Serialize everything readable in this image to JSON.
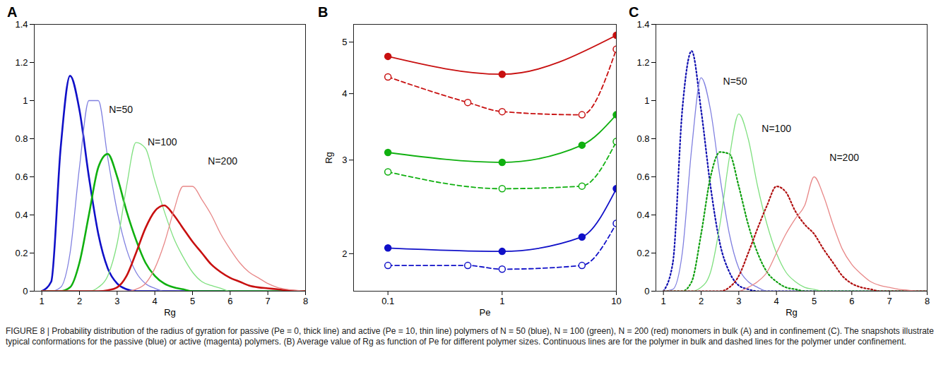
{
  "chart_data": [
    {
      "type": "line",
      "title": "A",
      "xlabel": "Rg",
      "x": [
        1,
        1.25,
        1.5,
        1.75,
        2,
        2.25,
        2.5,
        2.75,
        3,
        3.25,
        3.5,
        3.75,
        4,
        4.25,
        4.5,
        4.75,
        5,
        5.25,
        5.5,
        5.75,
        6,
        6.25,
        6.5,
        6.75,
        7,
        7.25,
        7.5,
        7.75,
        8
      ],
      "xlim": [
        0.8,
        8
      ],
      "xticks": [
        1,
        2,
        3,
        4,
        5,
        6,
        7,
        8
      ],
      "ylim": [
        0,
        1.4
      ],
      "yticks": [
        0,
        0.2,
        0.4,
        0.6,
        0.8,
        1,
        1.2,
        1.4
      ],
      "series": [
        {
          "color": "#1010c8",
          "line_style": "solid",
          "values": [
            0,
            0.05,
            0.75,
            1.13,
            0.95,
            0.6,
            0.3,
            0.12,
            0.04,
            0.01,
            0,
            0,
            0,
            0,
            0,
            0,
            0,
            0,
            0,
            0,
            0,
            0,
            0,
            0,
            0,
            0,
            0,
            0,
            0
          ]
        },
        {
          "color": "#8080e0",
          "line_style": "solid",
          "values": [
            0,
            0,
            0.02,
            0.2,
            0.65,
            1.0,
            1.0,
            0.7,
            0.42,
            0.22,
            0.1,
            0.04,
            0.015,
            0,
            0,
            0,
            0,
            0,
            0,
            0,
            0,
            0,
            0,
            0,
            0,
            0,
            0,
            0,
            0
          ]
        },
        {
          "color": "#10b010",
          "line_style": "solid",
          "values": [
            0,
            0,
            0,
            0.02,
            0.15,
            0.4,
            0.65,
            0.72,
            0.6,
            0.42,
            0.27,
            0.15,
            0.08,
            0.04,
            0.02,
            0.01,
            0,
            0,
            0,
            0,
            0,
            0,
            0,
            0,
            0,
            0,
            0,
            0,
            0
          ]
        },
        {
          "color": "#80e080",
          "line_style": "solid",
          "values": [
            0,
            0,
            0,
            0,
            0,
            0,
            0.02,
            0.08,
            0.25,
            0.55,
            0.78,
            0.75,
            0.58,
            0.42,
            0.28,
            0.18,
            0.1,
            0.05,
            0.03,
            0.015,
            0,
            0,
            0,
            0,
            0,
            0,
            0,
            0,
            0
          ]
        },
        {
          "color": "#c81010",
          "line_style": "solid",
          "values": [
            0,
            0,
            0,
            0,
            0,
            0,
            0,
            0.005,
            0.02,
            0.08,
            0.2,
            0.33,
            0.42,
            0.45,
            0.4,
            0.33,
            0.26,
            0.2,
            0.14,
            0.1,
            0.07,
            0.05,
            0.03,
            0.02,
            0.015,
            0.01,
            0.005,
            0,
            0
          ]
        },
        {
          "color": "#e88888",
          "line_style": "solid",
          "values": [
            0,
            0,
            0,
            0,
            0,
            0,
            0,
            0,
            0,
            0,
            0.01,
            0.04,
            0.12,
            0.25,
            0.42,
            0.55,
            0.55,
            0.48,
            0.4,
            0.3,
            0.22,
            0.15,
            0.1,
            0.07,
            0.04,
            0.02,
            0.01,
            0.005,
            0
          ]
        }
      ],
      "annotations": [
        {
          "text": "N=50",
          "x": 3.1,
          "y": 0.95
        },
        {
          "text": "N=100",
          "x": 4.2,
          "y": 0.78
        },
        {
          "text": "N=200",
          "x": 5.8,
          "y": 0.68
        }
      ]
    },
    {
      "type": "line",
      "title": "B",
      "xlabel": "Pe",
      "ylabel": "Rg",
      "log": true,
      "xlim": [
        0.05,
        10
      ],
      "xticks": [
        0.1,
        1,
        10
      ],
      "ylim": [
        1.7,
        5.4
      ],
      "yticks": [
        2,
        3,
        4,
        5
      ],
      "series": [
        {
          "color": "#c81010",
          "line_style": "solid",
          "marker": "filled",
          "x": [
            0.1,
            1,
            10
          ],
          "values": [
            4.7,
            4.35,
            5.15
          ]
        },
        {
          "color": "#c81010",
          "line_style": "dashed",
          "marker": "open",
          "x": [
            0.1,
            0.5,
            1,
            5,
            10
          ],
          "values": [
            4.3,
            3.85,
            3.7,
            3.65,
            4.85
          ]
        },
        {
          "color": "#10b010",
          "line_style": "solid",
          "marker": "filled",
          "x": [
            0.1,
            1,
            5,
            10
          ],
          "values": [
            3.1,
            2.97,
            3.2,
            3.65
          ]
        },
        {
          "color": "#10b010",
          "line_style": "dashed",
          "marker": "open",
          "x": [
            0.1,
            1,
            5,
            10
          ],
          "values": [
            2.85,
            2.65,
            2.68,
            3.25
          ]
        },
        {
          "color": "#1010c8",
          "line_style": "solid",
          "marker": "filled",
          "x": [
            0.1,
            1,
            5,
            10
          ],
          "values": [
            2.05,
            2.02,
            2.15,
            2.65
          ]
        },
        {
          "color": "#1010c8",
          "line_style": "dashed",
          "marker": "open",
          "x": [
            0.1,
            0.5,
            1,
            5,
            10
          ],
          "values": [
            1.9,
            1.9,
            1.87,
            1.9,
            2.28
          ]
        }
      ]
    },
    {
      "type": "line",
      "title": "C",
      "xlabel": "Rg",
      "x": [
        1,
        1.25,
        1.5,
        1.75,
        2,
        2.25,
        2.5,
        2.75,
        3,
        3.25,
        3.5,
        3.75,
        4,
        4.25,
        4.5,
        4.75,
        5,
        5.25,
        5.5,
        5.75,
        6,
        6.25,
        6.5,
        6.75,
        7,
        7.25,
        7.5,
        7.75,
        8
      ],
      "xlim": [
        0.8,
        8
      ],
      "xticks": [
        1,
        2,
        3,
        4,
        5,
        6,
        7,
        8
      ],
      "ylim": [
        0,
        1.4
      ],
      "yticks": [
        0,
        0.2,
        0.4,
        0.6,
        0.8,
        1,
        1.2,
        1.4
      ],
      "series": [
        {
          "color": "#1010b0",
          "line_style": "dotted",
          "values": [
            0,
            0.15,
            0.95,
            1.26,
            0.95,
            0.55,
            0.25,
            0.1,
            0.03,
            0.01,
            0,
            0,
            0,
            0,
            0,
            0,
            0,
            0,
            0,
            0,
            0,
            0,
            0,
            0,
            0,
            0,
            0,
            0,
            0
          ]
        },
        {
          "color": "#8080e0",
          "line_style": "solid",
          "values": [
            0,
            0.01,
            0.2,
            0.75,
            1.12,
            0.95,
            0.6,
            0.3,
            0.12,
            0.05,
            0.02,
            0,
            0,
            0,
            0,
            0,
            0,
            0,
            0,
            0,
            0,
            0,
            0,
            0,
            0,
            0,
            0,
            0,
            0
          ]
        },
        {
          "color": "#10a010",
          "line_style": "dotted",
          "values": [
            0,
            0,
            0,
            0.05,
            0.3,
            0.6,
            0.73,
            0.72,
            0.55,
            0.35,
            0.2,
            0.1,
            0.05,
            0.02,
            0.01,
            0,
            0,
            0,
            0,
            0,
            0,
            0,
            0,
            0,
            0,
            0,
            0,
            0,
            0
          ]
        },
        {
          "color": "#80e080",
          "line_style": "solid",
          "values": [
            0,
            0,
            0,
            0,
            0.02,
            0.1,
            0.35,
            0.7,
            0.93,
            0.8,
            0.55,
            0.35,
            0.2,
            0.1,
            0.05,
            0.02,
            0.01,
            0,
            0,
            0,
            0,
            0,
            0,
            0,
            0,
            0,
            0,
            0,
            0
          ]
        },
        {
          "color": "#b01010",
          "line_style": "dotted",
          "values": [
            0,
            0,
            0,
            0,
            0,
            0,
            0,
            0.02,
            0.08,
            0.2,
            0.33,
            0.45,
            0.55,
            0.52,
            0.42,
            0.35,
            0.3,
            0.22,
            0.15,
            0.08,
            0.04,
            0.02,
            0.01,
            0,
            0,
            0,
            0,
            0,
            0
          ]
        },
        {
          "color": "#e88888",
          "line_style": "solid",
          "values": [
            0,
            0,
            0,
            0,
            0,
            0,
            0,
            0,
            0,
            0.02,
            0.05,
            0.1,
            0.2,
            0.3,
            0.38,
            0.45,
            0.6,
            0.5,
            0.35,
            0.22,
            0.14,
            0.09,
            0.05,
            0.03,
            0.02,
            0.01,
            0.005,
            0,
            0
          ]
        }
      ],
      "annotations": [
        {
          "text": "N=50",
          "x": 2.9,
          "y": 1.1
        },
        {
          "text": "N=100",
          "x": 4.0,
          "y": 0.85
        },
        {
          "text": "N=200",
          "x": 5.8,
          "y": 0.7
        }
      ]
    }
  ],
  "caption": "FIGURE 8 | Probability distribution of the radius of gyration for passive (Pe = 0, thick line) and active (Pe = 10, thin line) polymers of N = 50 (blue), N = 100 (green), N = 200 (red) monomers in bulk (A) and in confinement (C). The snapshots illustrate typical conformations for the passive (blue) or active (magenta) polymers. (B) Average value of Rg as function of Pe for different polymer sizes. Continuous lines are for the polymer in bulk and dashed lines for the polymer under confinement."
}
